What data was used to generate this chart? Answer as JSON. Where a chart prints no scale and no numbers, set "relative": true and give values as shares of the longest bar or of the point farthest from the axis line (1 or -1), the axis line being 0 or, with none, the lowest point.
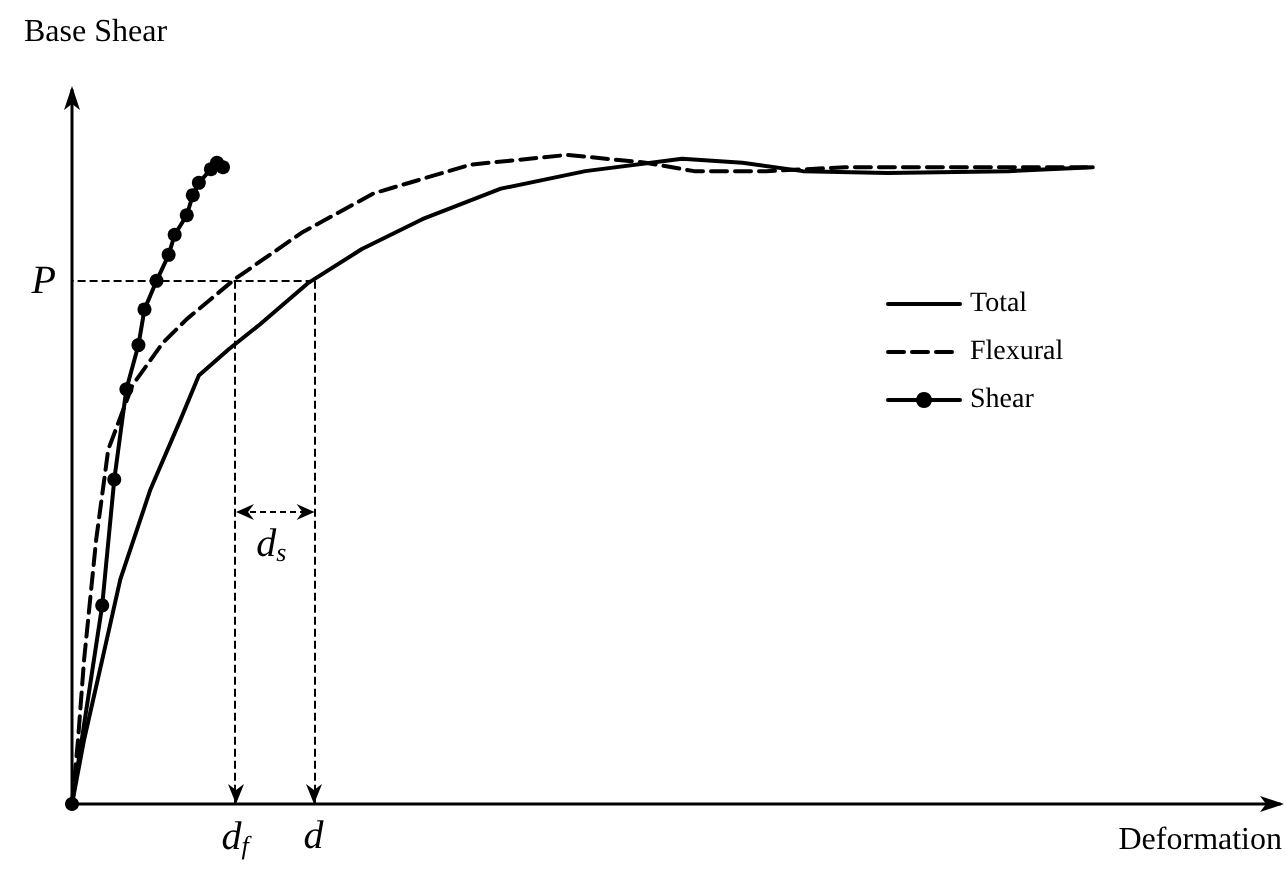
{
  "chart_data": {
    "type": "line",
    "relative": true,
    "xlabel": "Deformation",
    "ylabel": "Base Shear",
    "tick_labels": false,
    "grid": false,
    "legend": "right",
    "categories": [
      null,
      null,
      null,
      null,
      null,
      null,
      null,
      null,
      null,
      null,
      null,
      null,
      null,
      null,
      null,
      null,
      null,
      null,
      null,
      null,
      null,
      null,
      null,
      null,
      null,
      null,
      null,
      null,
      null,
      null,
      null,
      null,
      null,
      null,
      null,
      null,
      null,
      null,
      null,
      null,
      null,
      null,
      null,
      null,
      null,
      null,
      null,
      null,
      null,
      null,
      null,
      null,
      null,
      null,
      null,
      null,
      null,
      null,
      null,
      null,
      null,
      null,
      null,
      null,
      null,
      null,
      null,
      null,
      null,
      null,
      null,
      null,
      null,
      null,
      null,
      null,
      null,
      null,
      null,
      null,
      null,
      null,
      null,
      null,
      null,
      null,
      null,
      null,
      null,
      null,
      null,
      null,
      null,
      null,
      null,
      null,
      null,
      null,
      null,
      null,
      null,
      null,
      null,
      null,
      null,
      null,
      null,
      null,
      null,
      null,
      null,
      null,
      null,
      null,
      null,
      null,
      null,
      null,
      null,
      null,
      null,
      null,
      null,
      null,
      null,
      null,
      null,
      null,
      null,
      null,
      null,
      null,
      null,
      null,
      null,
      null,
      null,
      null,
      null,
      null,
      null,
      null,
      null,
      null,
      null,
      null,
      null,
      null,
      null,
      null,
      null,
      null,
      null,
      null,
      null,
      null,
      null,
      null,
      null,
      null,
      null,
      null,
      null,
      null,
      null,
      null,
      null,
      null,
      null,
      null,
      null,
      null,
      null,
      null,
      null,
      null,
      null,
      null,
      null,
      null,
      null,
      null,
      null,
      null,
      null,
      null,
      null,
      null,
      null,
      null,
      null,
      null,
      null,
      null,
      null,
      null,
      null,
      null,
      null,
      null,
      null
    ],
    "series": [
      {
        "name": "Total",
        "color": "#000000",
        "line_style": "solid",
        "marker": "none",
        "values": [
          0,
          null,
          0.099,
          null,
          null,
          0.222,
          null,
          null,
          0.346,
          null,
          null,
          null,
          null,
          0.485,
          null,
          null,
          null,
          null,
          0.593,
          null,
          null,
          0.66,
          null,
          null,
          null,
          null,
          0.701,
          null,
          null,
          null,
          null,
          0.738,
          null,
          null,
          null,
          null,
          null,
          null,
          null,
          0.802,
          null,
          null,
          null,
          null,
          null,
          null,
          null,
          null,
          0.855,
          null,
          null,
          null,
          null,
          null,
          null,
          null,
          null,
          null,
          0.901,
          null,
          null,
          null,
          null,
          null,
          null,
          null,
          null,
          null,
          null,
          null,
          null,
          0.948,
          null,
          null,
          null,
          null,
          null,
          null,
          null,
          null,
          null,
          null,
          null,
          null,
          null,
          0.975,
          null,
          null,
          null,
          null,
          null,
          null,
          null,
          null,
          null,
          null,
          null,
          null,
          null,
          null,
          null,
          0.994,
          null,
          null,
          null,
          null,
          null,
          null,
          null,
          null,
          null,
          0.988,
          null,
          null,
          null,
          null,
          null,
          null,
          null,
          null,
          null,
          0.975,
          null,
          null,
          null,
          null,
          null,
          null,
          null,
          null,
          null,
          null,
          null,
          null,
          null,
          0.972,
          null,
          null,
          null,
          null,
          null,
          null,
          null,
          null,
          null,
          null,
          null,
          null,
          null,
          null,
          null,
          null,
          null,
          null,
          null,
          0.975,
          null,
          null,
          null,
          null,
          null,
          null,
          null,
          null,
          null,
          null,
          null,
          null,
          null,
          0.981,
          null,
          null,
          null,
          null,
          null,
          null,
          null,
          null,
          null,
          null,
          null,
          null,
          null,
          null,
          null,
          null,
          null,
          null,
          null,
          null,
          null,
          null,
          null,
          null,
          null,
          null,
          null,
          null,
          null,
          null,
          null
        ]
      },
      {
        "name": "Flexural",
        "color": "#000000",
        "line_style": "dashed",
        "marker": "none",
        "values": [
          0,
          0.099,
          0.222,
          null,
          0.407,
          null,
          0.546,
          null,
          null,
          null,
          0.645,
          null,
          null,
          null,
          null,
          0.71,
          null,
          null,
          null,
          0.747,
          null,
          null,
          null,
          null,
          null,
          null,
          null,
          0.809,
          null,
          null,
          null,
          null,
          null,
          null,
          null,
          null,
          null,
          null,
          0.88,
          null,
          null,
          null,
          null,
          null,
          null,
          null,
          null,
          null,
          null,
          null,
          0.941,
          null,
          null,
          null,
          null,
          null,
          null,
          null,
          null,
          null,
          null,
          null,
          null,
          null,
          null,
          null,
          0.985,
          null,
          null,
          null,
          null,
          null,
          null,
          null,
          null,
          null,
          null,
          null,
          null,
          null,
          null,
          null,
          1,
          null,
          null,
          null,
          null,
          null,
          null,
          null,
          null,
          null,
          null,
          null,
          null,
          0.988,
          null,
          null,
          null,
          null,
          null,
          null,
          null,
          0.975,
          null,
          null,
          null,
          null,
          null,
          null,
          null,
          null,
          null,
          null,
          null,
          0.975,
          null,
          null,
          null,
          null,
          null,
          null,
          null,
          null,
          null,
          null,
          null,
          null,
          0.981,
          null,
          null,
          null,
          null,
          null,
          null,
          null,
          null,
          null,
          null,
          null,
          null,
          null,
          null,
          null,
          null,
          null,
          null,
          null,
          null,
          null,
          null,
          null,
          null,
          null,
          null,
          null,
          null,
          null,
          null,
          null,
          null,
          null,
          null,
          null,
          null,
          null,
          null,
          null,
          null,
          0.981,
          null,
          null,
          null,
          null,
          null,
          null,
          null,
          null,
          null,
          null,
          null,
          null,
          null,
          null,
          null,
          null,
          null,
          null,
          null,
          null,
          null,
          null,
          null,
          null,
          null,
          null,
          null,
          null,
          null,
          null,
          null
        ]
      },
      {
        "name": "Shear",
        "color": "#000000",
        "line_style": "solid",
        "marker": "circle",
        "values": [
          0,
          null,
          null,
          null,
          null,
          0.306,
          null,
          0.5,
          null,
          0.639,
          null,
          0.707,
          0.762,
          null,
          0.806,
          null,
          0.846,
          0.877,
          null,
          0.907,
          0.938,
          0.957,
          null,
          0.978,
          0.988,
          0.981,
          null,
          null,
          null,
          null,
          null,
          null,
          null,
          null,
          null,
          null,
          null,
          null,
          null,
          null,
          null,
          null,
          null,
          null,
          null,
          null,
          null,
          null,
          null,
          null,
          null,
          null,
          null,
          null,
          null,
          null,
          null,
          null,
          null,
          null,
          null,
          null,
          null,
          null,
          null,
          null,
          null,
          null,
          null,
          null,
          null,
          null,
          null,
          null,
          null,
          null,
          null,
          null,
          null,
          null,
          null,
          null,
          null,
          null,
          null,
          null,
          null,
          null,
          null,
          null,
          null,
          null,
          null,
          null,
          null,
          null,
          null,
          null,
          null,
          null,
          null,
          null,
          null,
          null,
          null,
          null,
          null,
          null,
          null,
          null,
          null,
          null,
          null,
          null,
          null,
          null,
          null,
          null,
          null,
          null,
          null,
          null,
          null,
          null,
          null,
          null,
          null,
          null,
          null,
          null,
          null,
          null,
          null,
          null,
          null,
          null,
          null,
          null,
          null,
          null,
          null,
          null,
          null,
          null,
          null,
          null,
          null,
          null,
          null,
          null,
          null,
          null,
          null,
          null,
          null,
          null,
          null,
          null,
          null,
          null,
          null,
          null,
          null,
          null,
          null,
          null,
          null,
          null,
          null,
          null,
          null,
          null,
          null,
          null,
          null,
          null,
          null,
          null,
          null,
          null,
          null,
          null,
          null,
          null,
          null,
          null,
          null,
          null,
          null,
          null,
          null,
          null,
          null,
          null,
          null,
          null,
          null,
          null,
          null,
          null,
          null
        ]
      }
    ],
    "ref_lines": [
      {
        "axis": "y",
        "value": 0.806,
        "label": "P",
        "line_style": "dashed"
      }
    ],
    "annotations": [
      "d$_{f}$",
      "d",
      "d$_{s}$"
    ]
  }
}
